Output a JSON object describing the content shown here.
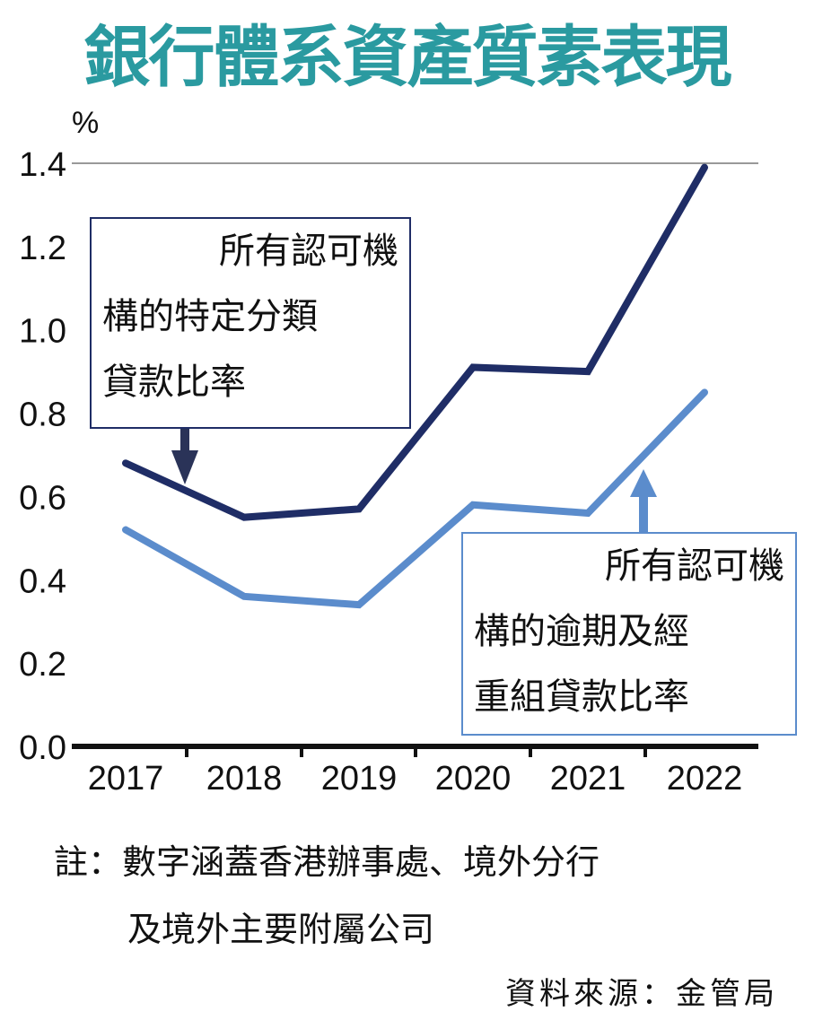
{
  "title": "銀行體系資產質素表現",
  "chart_data": {
    "type": "line",
    "title": "銀行體系資產質素表現",
    "ylabel": "%",
    "xlabel": "",
    "categories": [
      "2017",
      "2018",
      "2019",
      "2020",
      "2021",
      "2022"
    ],
    "ylim": [
      0,
      1.4
    ],
    "yticks": [
      "0.0",
      "0.2",
      "0.4",
      "0.6",
      "0.8",
      "1.0",
      "1.2",
      "1.4"
    ],
    "grid": "top line at 1.4 only",
    "series": [
      {
        "name": "所有認可機構的特定分類貸款比率",
        "label_lines": [
          "所有認可機",
          "構的特定分類",
          "貸款比率"
        ],
        "color": "#1f2d66",
        "values": [
          0.68,
          0.55,
          0.57,
          0.91,
          0.9,
          1.39
        ]
      },
      {
        "name": "所有認可機構的逾期及經重組貸款比率",
        "label_lines": [
          "所有認可機",
          "構的逾期及經",
          "重組貸款比率"
        ],
        "color": "#5b8ccc",
        "values": [
          0.52,
          0.36,
          0.34,
          0.58,
          0.56,
          0.85
        ]
      }
    ]
  },
  "note": {
    "prefix": "註：",
    "line1": "數字涵蓋香港辦事處、境外分行",
    "line2": "及境外主要附屬公司"
  },
  "source": "資料來源：金管局"
}
